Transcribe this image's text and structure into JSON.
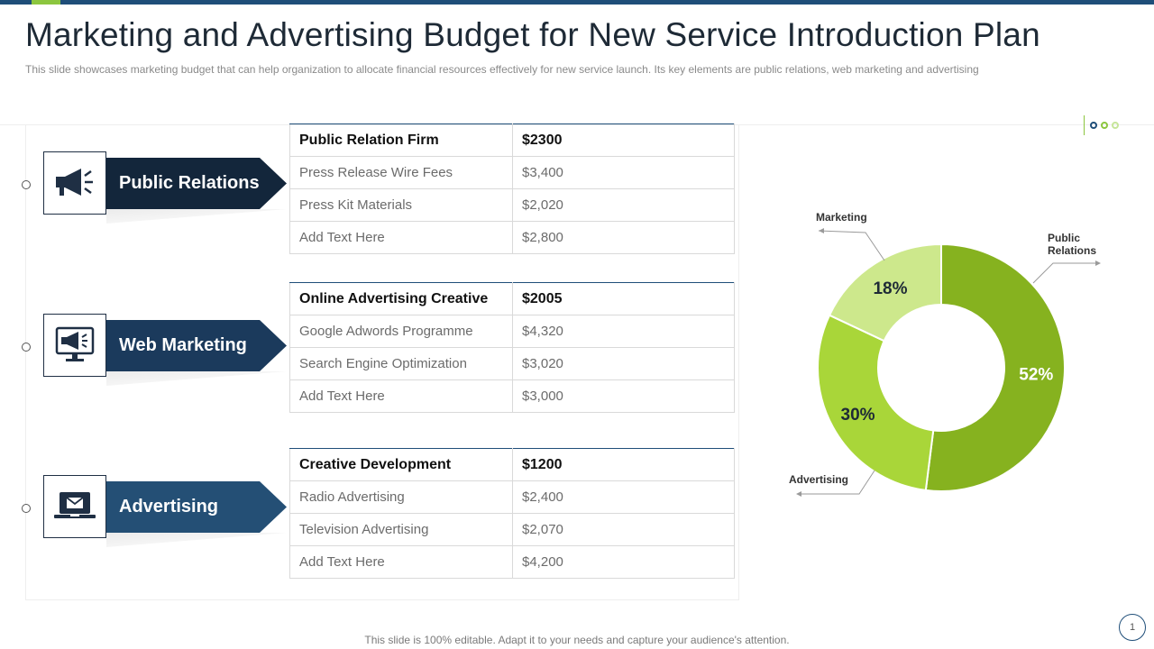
{
  "title": "Marketing and Advertising Budget for New Service Introduction Plan",
  "subtitle": "This slide showcases marketing budget that can help organization to allocate financial resources effectively for new service launch. Its key elements are public relations, web marketing and advertising",
  "colors": {
    "navy": "#1f4e79",
    "dark_navy": "#13263b",
    "green_dark": "#86b21f",
    "green_mid": "#a9d639",
    "green_light": "#cde88c"
  },
  "categories": [
    {
      "label": "Public Relations",
      "icon": "megaphone-icon",
      "table": {
        "header": [
          "Public Relation Firm",
          "$2300"
        ],
        "rows": [
          [
            "Press Release Wire Fees",
            "$3,400"
          ],
          [
            "Press Kit Materials",
            "$2,020"
          ],
          [
            "Add Text Here",
            "$2,800"
          ]
        ]
      }
    },
    {
      "label": "Web Marketing",
      "icon": "monitor-megaphone-icon",
      "table": {
        "header": [
          "Online Advertising Creative",
          "$2005"
        ],
        "rows": [
          [
            "Google Adwords Programme",
            "$4,320"
          ],
          [
            "Search Engine Optimization",
            "$3,020"
          ],
          [
            "Add Text Here",
            "$3,000"
          ]
        ]
      }
    },
    {
      "label": "Advertising",
      "icon": "laptop-mail-icon",
      "table": {
        "header": [
          "Creative Development",
          "$1200"
        ],
        "rows": [
          [
            "Radio Advertising",
            "$2,400"
          ],
          [
            "Television Advertising",
            "$2,070"
          ],
          [
            "Add Text Here",
            "$4,200"
          ]
        ]
      }
    }
  ],
  "chart_data": {
    "type": "pie",
    "style": "donut",
    "title": "",
    "slices": [
      {
        "name": "Public Relations",
        "value": 52,
        "label": "52%",
        "color": "#86b21f"
      },
      {
        "name": "Advertising",
        "value": 30,
        "label": "30%",
        "color": "#a9d639"
      },
      {
        "name": "Marketing",
        "value": 18,
        "label": "18%",
        "color": "#cde88c"
      }
    ],
    "callouts": {
      "marketing": "Marketing",
      "public_relations_1": "Public",
      "public_relations_2": "Relations",
      "advertising": "Advertising"
    }
  },
  "footer": "This slide is 100% editable. Adapt it to your needs and capture your audience's attention.",
  "page_number": "1"
}
